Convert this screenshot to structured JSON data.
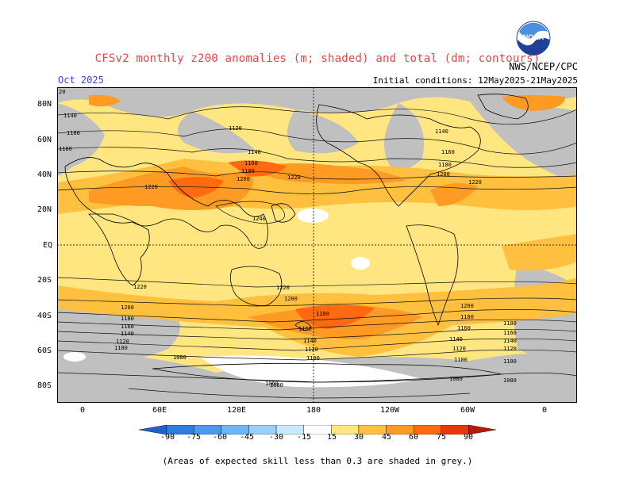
{
  "title": "CFSv2 monthly z200 anomalies (m; shaded) and total (dm; contours)",
  "month": "Oct 2025",
  "agency": "NWS/NCEP/CPC",
  "initial_conditions": "Initial conditions: 12May2025-21May2025",
  "logo": {
    "icon": "noaa-logo-icon",
    "text": "NOAA"
  },
  "lat_labels": [
    "80N",
    "60N",
    "40N",
    "20N",
    "EQ",
    "20S",
    "40S",
    "60S",
    "80S"
  ],
  "lon_labels": [
    "0",
    "60E",
    "120E",
    "180",
    "120W",
    "60W",
    "0"
  ],
  "legend": {
    "ticks": [
      "-90",
      "-75",
      "-60",
      "-45",
      "-30",
      "-15",
      "15",
      "30",
      "45",
      "60",
      "75",
      "90"
    ],
    "colors": [
      "#1f63c9",
      "#2e7de0",
      "#4a9bf0",
      "#6cb6f7",
      "#96d1fb",
      "#c7ebfd",
      "#ffffff",
      "#ffe680",
      "#ffc040",
      "#ff9a22",
      "#ff6a10",
      "#e8380c",
      "#b81a0a"
    ]
  },
  "contour_labels": [
    "1140",
    "1160",
    "1180",
    "1120",
    "1140",
    "1160",
    "1180",
    "1200",
    "1220",
    "1240",
    "1140",
    "1160",
    "1180",
    "1200",
    "1220",
    "1220",
    "1200",
    "1180",
    "1160",
    "1140",
    "1120",
    "1100",
    "1080",
    "1060",
    "1220",
    "1200",
    "1180",
    "1160",
    "1140",
    "1120",
    "1100",
    "1080",
    "1220",
    "1200",
    "1180",
    "1160",
    "1140",
    "1120",
    "1100",
    "1080",
    "1180",
    "1160",
    "1140",
    "1120",
    "1100",
    "1080",
    "20"
  ],
  "note": "(Areas of expected skill less than 0.3 are shaded in grey.)"
}
